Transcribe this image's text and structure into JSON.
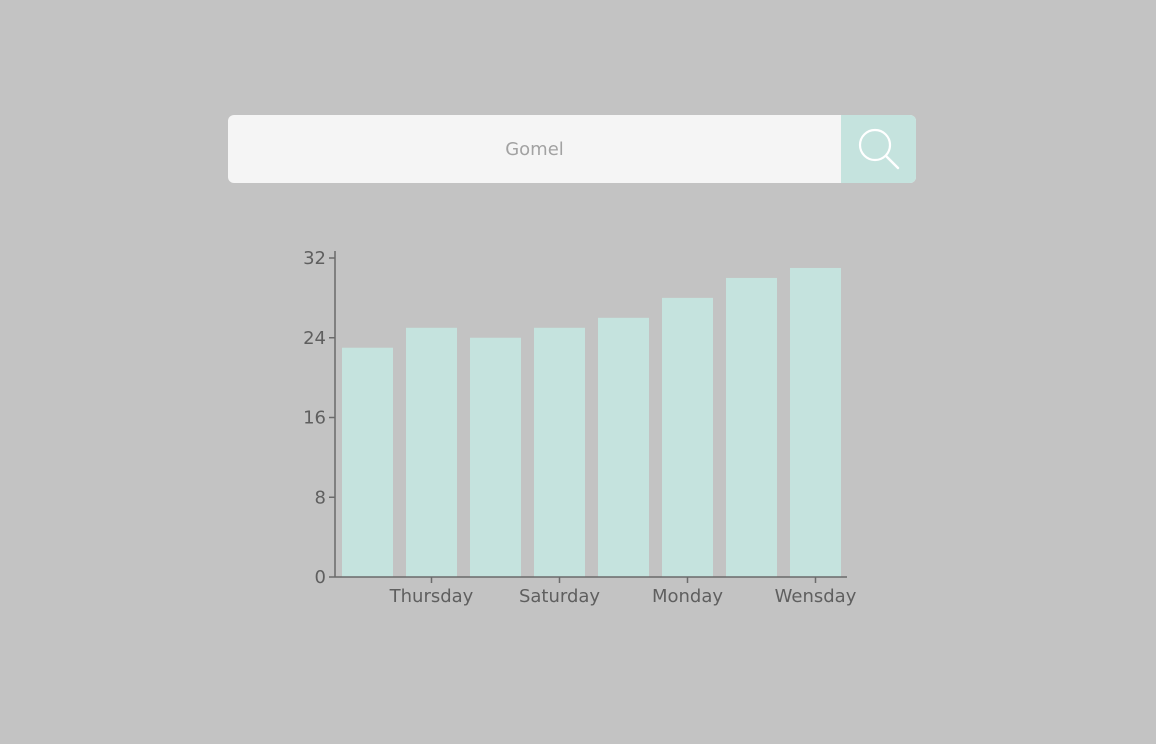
{
  "search": {
    "value": "",
    "placeholder": "Gomel",
    "icon": "search-icon"
  },
  "colors": {
    "background": "#c3c3c3",
    "search_bg": "#f5f5f5",
    "accent": "#c5e3de",
    "axis": "#6b6b6b",
    "text": "#5f5f5f"
  },
  "chart_data": {
    "type": "bar",
    "categories": [
      "",
      "Thursday",
      "",
      "Saturday",
      "",
      "Monday",
      "",
      "Wensday"
    ],
    "values": [
      23,
      25,
      24,
      25,
      26,
      28,
      30,
      31
    ],
    "yticks": [
      0,
      8,
      16,
      24,
      32
    ],
    "ylim": [
      0,
      32
    ],
    "grid": false
  }
}
